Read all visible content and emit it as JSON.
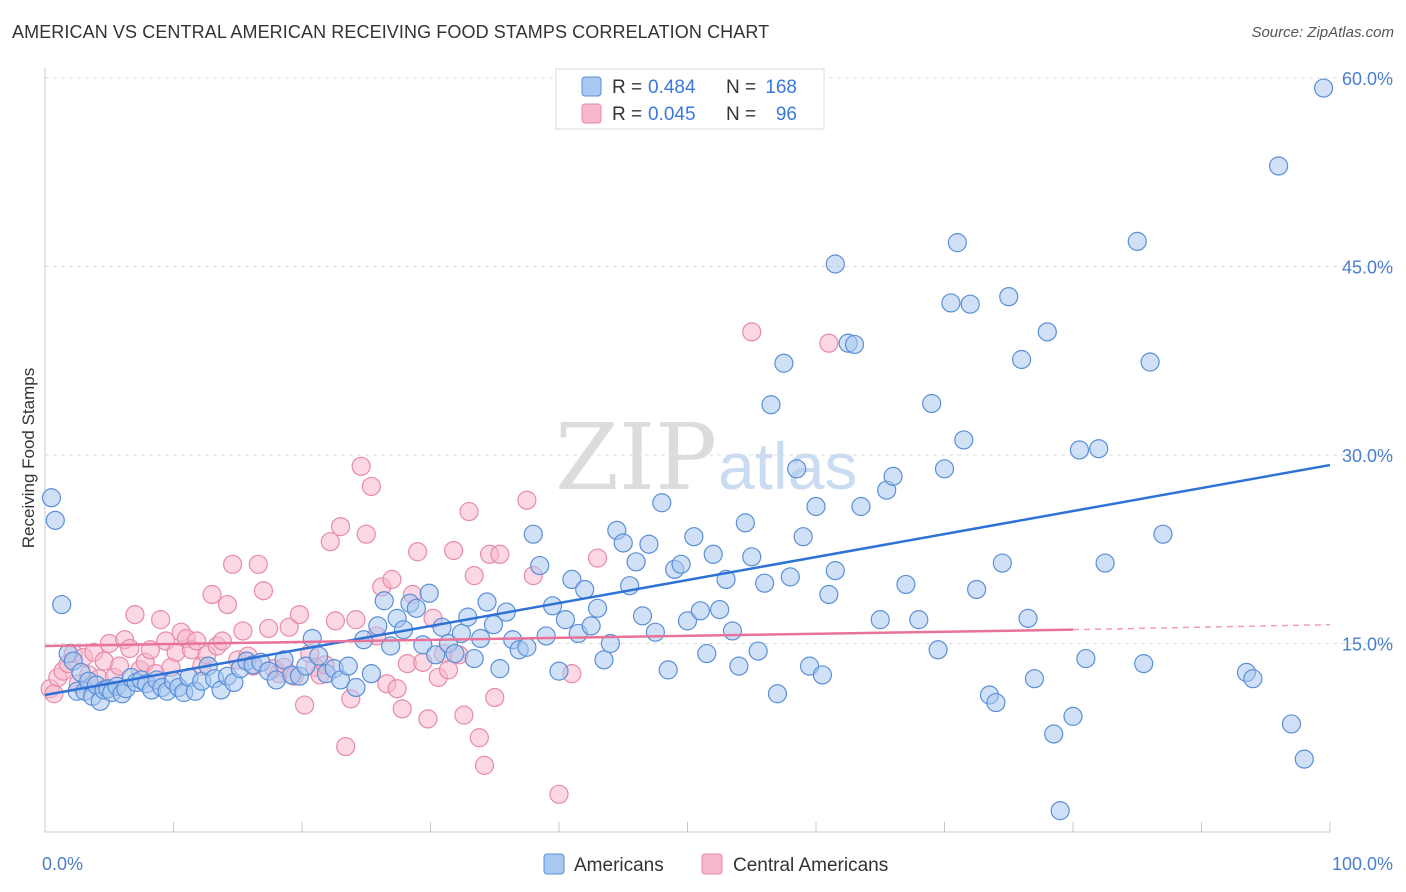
{
  "title": "AMERICAN VS CENTRAL AMERICAN RECEIVING FOOD STAMPS CORRELATION CHART",
  "source": "Source: ZipAtlas.com",
  "watermark": {
    "zip": "ZIP",
    "atlas": "atlas"
  },
  "colors": {
    "americans_fill": "#a9c8f0",
    "americans_stroke": "#5a8fd8",
    "americans_line": "#2f72d6",
    "central_fill": "#f7b8cc",
    "central_stroke": "#e88aa8",
    "central_line": "#e8739a",
    "tick_label": "#4a7fd0",
    "grid": "#dddddd"
  },
  "legend": {
    "rows": [
      {
        "r_label": "R = ",
        "r_value": "0.484",
        "n_label": "N = ",
        "n_value": "168"
      },
      {
        "r_label": "R = ",
        "r_value": "0.045",
        "n_label": "N = ",
        "n_value": "96"
      }
    ]
  },
  "bottom_legend": {
    "americans": "Americans",
    "central": "Central Americans"
  },
  "chart_data": {
    "type": "scatter",
    "title": "AMERICAN VS CENTRAL AMERICAN RECEIVING FOOD STAMPS CORRELATION CHART",
    "xlabel": "",
    "ylabel": "Receiving Food Stamps",
    "xlim": [
      0,
      100
    ],
    "ylim": [
      0,
      60
    ],
    "x_tick_labels": [
      "0.0%",
      "100.0%"
    ],
    "y_ticks": [
      15,
      30,
      45,
      60
    ],
    "y_tick_labels": [
      "15.0%",
      "30.0%",
      "45.0%",
      "60.0%"
    ],
    "grid": true,
    "legend_position": "top-center",
    "series": [
      {
        "name": "Americans",
        "R": 0.484,
        "N": 168,
        "trend": {
          "x": [
            0,
            100
          ],
          "y": [
            10.9,
            29.2
          ]
        },
        "points": [
          [
            0.5,
            26.6
          ],
          [
            0.8,
            24.8
          ],
          [
            1.3,
            18.1
          ],
          [
            1.8,
            14.2
          ],
          [
            2.2,
            13.6
          ],
          [
            2.5,
            11.2
          ],
          [
            2.8,
            12.7
          ],
          [
            3.1,
            11.2
          ],
          [
            3.4,
            12.0
          ],
          [
            3.7,
            10.8
          ],
          [
            4.0,
            11.7
          ],
          [
            4.3,
            10.4
          ],
          [
            4.6,
            11.3
          ],
          [
            4.9,
            11.4
          ],
          [
            5.2,
            11.1
          ],
          [
            5.6,
            11.6
          ],
          [
            6.0,
            11.0
          ],
          [
            6.3,
            11.4
          ],
          [
            6.7,
            12.3
          ],
          [
            7.1,
            11.9
          ],
          [
            7.5,
            12.1
          ],
          [
            7.9,
            11.8
          ],
          [
            8.3,
            11.3
          ],
          [
            8.7,
            12.1
          ],
          [
            9.1,
            11.5
          ],
          [
            9.5,
            11.2
          ],
          [
            10.0,
            12.0
          ],
          [
            10.4,
            11.5
          ],
          [
            10.8,
            11.1
          ],
          [
            11.2,
            12.3
          ],
          [
            11.7,
            11.2
          ],
          [
            12.2,
            12.0
          ],
          [
            12.7,
            13.2
          ],
          [
            13.2,
            12.2
          ],
          [
            13.7,
            11.3
          ],
          [
            14.2,
            12.4
          ],
          [
            14.7,
            11.9
          ],
          [
            15.2,
            13.0
          ],
          [
            15.7,
            13.6
          ],
          [
            16.2,
            13.3
          ],
          [
            16.8,
            13.5
          ],
          [
            17.4,
            12.8
          ],
          [
            18.0,
            12.1
          ],
          [
            18.6,
            13.7
          ],
          [
            19.2,
            12.5
          ],
          [
            19.8,
            12.4
          ],
          [
            20.3,
            13.2
          ],
          [
            20.8,
            15.4
          ],
          [
            21.3,
            14.0
          ],
          [
            21.9,
            12.6
          ],
          [
            22.5,
            13.0
          ],
          [
            23.0,
            12.1
          ],
          [
            23.6,
            13.2
          ],
          [
            24.2,
            11.5
          ],
          [
            24.8,
            15.3
          ],
          [
            25.4,
            12.6
          ],
          [
            25.9,
            16.4
          ],
          [
            26.4,
            18.4
          ],
          [
            26.9,
            14.8
          ],
          [
            27.4,
            17.0
          ],
          [
            27.9,
            16.1
          ],
          [
            28.4,
            18.2
          ],
          [
            28.9,
            17.8
          ],
          [
            29.4,
            14.9
          ],
          [
            29.9,
            19.0
          ],
          [
            30.4,
            14.1
          ],
          [
            30.9,
            16.3
          ],
          [
            31.4,
            15.0
          ],
          [
            31.9,
            14.2
          ],
          [
            32.4,
            15.8
          ],
          [
            32.9,
            17.1
          ],
          [
            33.4,
            13.8
          ],
          [
            33.9,
            15.4
          ],
          [
            34.4,
            18.3
          ],
          [
            34.9,
            16.5
          ],
          [
            35.4,
            13.0
          ],
          [
            35.9,
            17.5
          ],
          [
            36.4,
            15.3
          ],
          [
            36.9,
            14.5
          ],
          [
            37.5,
            14.7
          ],
          [
            38.0,
            23.7
          ],
          [
            38.5,
            21.2
          ],
          [
            39.0,
            15.6
          ],
          [
            39.5,
            18.0
          ],
          [
            40.0,
            12.8
          ],
          [
            40.5,
            16.9
          ],
          [
            41.0,
            20.1
          ],
          [
            41.5,
            15.8
          ],
          [
            42.0,
            19.3
          ],
          [
            42.5,
            16.4
          ],
          [
            43.0,
            17.8
          ],
          [
            43.5,
            13.7
          ],
          [
            44.0,
            15.0
          ],
          [
            44.5,
            24.0
          ],
          [
            45.0,
            23.0
          ],
          [
            45.5,
            19.6
          ],
          [
            46.0,
            21.5
          ],
          [
            46.5,
            17.2
          ],
          [
            47.0,
            22.9
          ],
          [
            47.5,
            15.9
          ],
          [
            48.0,
            26.2
          ],
          [
            48.5,
            12.9
          ],
          [
            49.0,
            20.9
          ],
          [
            49.5,
            21.3
          ],
          [
            50.0,
            16.8
          ],
          [
            50.5,
            23.5
          ],
          [
            51.0,
            17.6
          ],
          [
            51.5,
            14.2
          ],
          [
            52.0,
            22.1
          ],
          [
            52.5,
            17.7
          ],
          [
            53.0,
            20.1
          ],
          [
            53.5,
            16.0
          ],
          [
            54.0,
            13.2
          ],
          [
            54.5,
            24.6
          ],
          [
            55.0,
            21.9
          ],
          [
            55.5,
            14.4
          ],
          [
            56.0,
            19.8
          ],
          [
            56.5,
            34.0
          ],
          [
            57.0,
            11.0
          ],
          [
            57.5,
            37.3
          ],
          [
            58.0,
            20.3
          ],
          [
            58.5,
            28.9
          ],
          [
            59.0,
            23.5
          ],
          [
            59.5,
            13.2
          ],
          [
            60.0,
            25.9
          ],
          [
            60.5,
            12.5
          ],
          [
            61.0,
            18.9
          ],
          [
            61.5,
            20.8
          ],
          [
            61.5,
            45.2
          ],
          [
            62.5,
            38.9
          ],
          [
            63.0,
            38.8
          ],
          [
            63.5,
            25.9
          ],
          [
            65.0,
            16.9
          ],
          [
            65.5,
            27.2
          ],
          [
            66.0,
            28.3
          ],
          [
            67.0,
            19.7
          ],
          [
            68.0,
            16.9
          ],
          [
            69.0,
            34.1
          ],
          [
            69.5,
            14.5
          ],
          [
            70.0,
            28.9
          ],
          [
            70.5,
            42.1
          ],
          [
            71.0,
            46.9
          ],
          [
            71.5,
            31.2
          ],
          [
            72.0,
            42.0
          ],
          [
            72.5,
            19.3
          ],
          [
            73.5,
            10.9
          ],
          [
            74.0,
            10.3
          ],
          [
            74.5,
            21.4
          ],
          [
            75.0,
            42.6
          ],
          [
            76.0,
            37.6
          ],
          [
            76.5,
            17.0
          ],
          [
            77.0,
            12.2
          ],
          [
            78.0,
            39.8
          ],
          [
            78.5,
            7.8
          ],
          [
            79.0,
            1.7
          ],
          [
            80.0,
            9.2
          ],
          [
            80.5,
            30.4
          ],
          [
            81.0,
            13.8
          ],
          [
            82.0,
            30.5
          ],
          [
            82.5,
            21.4
          ],
          [
            85.0,
            47.0
          ],
          [
            85.5,
            13.4
          ],
          [
            86.0,
            37.4
          ],
          [
            87.0,
            23.7
          ],
          [
            93.5,
            12.7
          ],
          [
            94.0,
            12.2
          ],
          [
            96.0,
            53.0
          ],
          [
            97.0,
            8.6
          ],
          [
            98.0,
            5.8
          ],
          [
            99.5,
            59.2
          ]
        ]
      },
      {
        "name": "Central Americans",
        "R": 0.045,
        "N": 96,
        "trend": {
          "x": [
            0,
            80
          ],
          "y": [
            14.8,
            16.1
          ]
        },
        "trend_dashed": {
          "x": [
            80,
            100
          ],
          "y": [
            16.1,
            16.5
          ]
        },
        "points": [
          [
            0.4,
            11.4
          ],
          [
            0.7,
            11.0
          ],
          [
            1.0,
            12.3
          ],
          [
            1.4,
            12.8
          ],
          [
            1.8,
            13.4
          ],
          [
            2.2,
            14.2
          ],
          [
            2.6,
            11.8
          ],
          [
            3.0,
            13.9
          ],
          [
            3.4,
            12.5
          ],
          [
            3.8,
            14.3
          ],
          [
            4.2,
            12.2
          ],
          [
            4.6,
            13.6
          ],
          [
            5.0,
            15.0
          ],
          [
            5.4,
            12.3
          ],
          [
            5.8,
            13.2
          ],
          [
            6.2,
            15.3
          ],
          [
            6.6,
            14.6
          ],
          [
            7.0,
            17.3
          ],
          [
            7.4,
            12.9
          ],
          [
            7.8,
            13.5
          ],
          [
            8.2,
            14.5
          ],
          [
            8.6,
            12.6
          ],
          [
            9.0,
            16.9
          ],
          [
            9.4,
            15.2
          ],
          [
            9.8,
            13.1
          ],
          [
            10.2,
            14.3
          ],
          [
            10.6,
            15.9
          ],
          [
            11.0,
            15.4
          ],
          [
            11.4,
            14.5
          ],
          [
            11.8,
            15.2
          ],
          [
            12.2,
            13.2
          ],
          [
            12.6,
            14.1
          ],
          [
            13.0,
            18.9
          ],
          [
            13.4,
            14.8
          ],
          [
            13.8,
            15.2
          ],
          [
            14.2,
            18.1
          ],
          [
            14.6,
            21.3
          ],
          [
            15.0,
            13.7
          ],
          [
            15.4,
            16.0
          ],
          [
            15.8,
            14.0
          ],
          [
            16.2,
            13.2
          ],
          [
            16.6,
            21.3
          ],
          [
            17.0,
            19.2
          ],
          [
            17.4,
            16.2
          ],
          [
            17.8,
            13.0
          ],
          [
            18.2,
            12.6
          ],
          [
            18.6,
            13.1
          ],
          [
            19.0,
            16.3
          ],
          [
            19.4,
            12.4
          ],
          [
            19.8,
            17.3
          ],
          [
            20.2,
            10.1
          ],
          [
            20.6,
            14.2
          ],
          [
            21.0,
            13.1
          ],
          [
            21.4,
            12.5
          ],
          [
            21.8,
            13.3
          ],
          [
            22.2,
            23.1
          ],
          [
            22.6,
            16.8
          ],
          [
            23.0,
            24.3
          ],
          [
            23.4,
            6.8
          ],
          [
            23.8,
            10.6
          ],
          [
            24.2,
            16.9
          ],
          [
            24.6,
            29.1
          ],
          [
            25.0,
            23.7
          ],
          [
            25.4,
            27.5
          ],
          [
            25.8,
            15.6
          ],
          [
            26.2,
            19.5
          ],
          [
            26.6,
            11.8
          ],
          [
            27.0,
            20.1
          ],
          [
            27.4,
            11.4
          ],
          [
            27.8,
            9.8
          ],
          [
            28.2,
            13.4
          ],
          [
            28.6,
            18.9
          ],
          [
            29.0,
            22.3
          ],
          [
            29.4,
            13.5
          ],
          [
            29.8,
            9.0
          ],
          [
            30.2,
            17.0
          ],
          [
            30.6,
            12.3
          ],
          [
            31.0,
            14.2
          ],
          [
            31.4,
            12.9
          ],
          [
            31.8,
            22.4
          ],
          [
            32.2,
            14.1
          ],
          [
            32.6,
            9.3
          ],
          [
            33.0,
            25.5
          ],
          [
            33.4,
            20.4
          ],
          [
            33.8,
            7.5
          ],
          [
            34.2,
            5.3
          ],
          [
            34.6,
            22.1
          ],
          [
            35.0,
            10.7
          ],
          [
            35.4,
            22.1
          ],
          [
            37.5,
            26.4
          ],
          [
            38.0,
            20.4
          ],
          [
            40.0,
            3.0
          ],
          [
            41.0,
            12.6
          ],
          [
            43.0,
            21.8
          ],
          [
            55.0,
            39.8
          ],
          [
            61.0,
            38.9
          ]
        ]
      }
    ]
  }
}
